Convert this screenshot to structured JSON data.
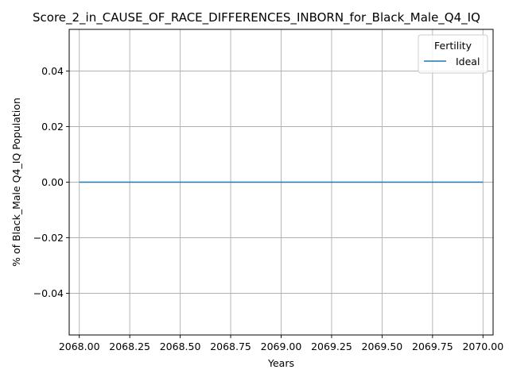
{
  "chart_data": {
    "type": "line",
    "title": "Score_2_in_CAUSE_OF_RACE_DIFFERENCES_INBORN_for_Black_Male_Q4_IQ",
    "xlabel": "Years",
    "ylabel": "% of Black_Male Q4_IQ Population",
    "xlim": [
      2067.95,
      2070.05
    ],
    "ylim": [
      -0.055,
      0.055
    ],
    "x_ticks": [
      2068.0,
      2068.25,
      2068.5,
      2068.75,
      2069.0,
      2069.25,
      2069.5,
      2069.75,
      2070.0
    ],
    "x_tick_labels": [
      "2068.00",
      "2068.25",
      "2068.50",
      "2068.75",
      "2069.00",
      "2069.25",
      "2069.50",
      "2069.75",
      "2070.00"
    ],
    "y_ticks": [
      -0.04,
      -0.02,
      0.0,
      0.02,
      0.04
    ],
    "y_tick_labels": [
      "−0.04",
      "−0.02",
      "0.00",
      "0.02",
      "0.04"
    ],
    "grid": true,
    "legend": {
      "title": "Fertility",
      "position": "top-right"
    },
    "series": [
      {
        "name": "Ideal",
        "color": "#1f77b4",
        "x": [
          2068,
          2069,
          2070
        ],
        "y": [
          0,
          0,
          0
        ]
      }
    ]
  }
}
